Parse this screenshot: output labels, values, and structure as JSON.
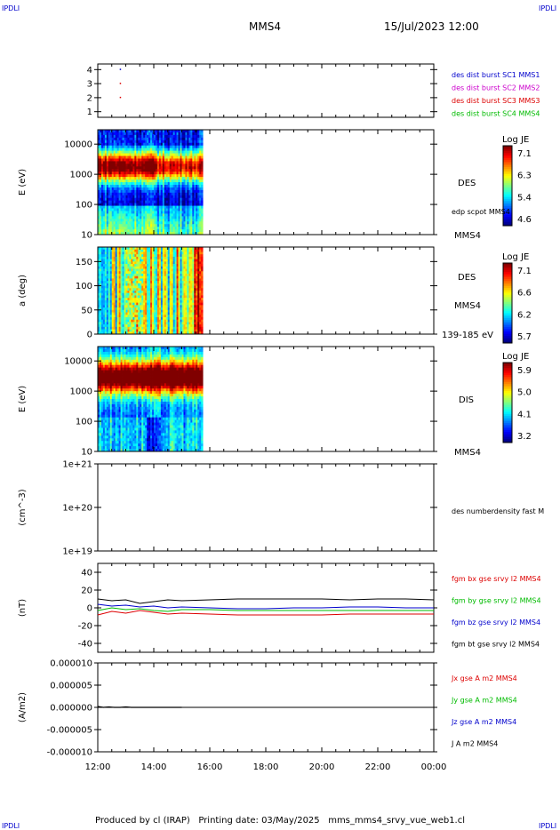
{
  "header": {
    "corner_label": "IPDLI",
    "spacecraft": "MMS4",
    "datetime": "15/Jul/2023 12:00"
  },
  "footer": {
    "produced_by": "Produced by cl (IRAP)",
    "printing_date": "Printing date: 03/May/2025",
    "filename": "mms_mms4_srvy_vue_web1.cl"
  },
  "colors": {
    "mms1": "#0000cc",
    "mms2": "#cc00cc",
    "mms3": "#dd0000",
    "mms4": "#00bb00",
    "bt": "#000000"
  },
  "chart_data": [
    {
      "type": "scatter",
      "ytick_labels": [
        "4",
        "3",
        "2",
        "1"
      ],
      "ylim": [
        0.6,
        4.4
      ],
      "legend": [
        "des dist burst SC1 MMS1",
        "des dist burst SC2 MMS2",
        "des dist burst SC3 MMS3",
        "des dist burst SC4 MMS4"
      ],
      "points": [
        {
          "x": 12.8,
          "y": 4,
          "series": 0
        },
        {
          "x": 12.8,
          "y": 3,
          "series": 2
        },
        {
          "x": 12.8,
          "y": 2,
          "series": 2
        }
      ]
    },
    {
      "type": "heatmap",
      "ylabel": "E (eV)",
      "ytick_labels": [
        "10000",
        "1000",
        "100",
        "10"
      ],
      "scale": "log",
      "ylim": [
        10,
        30000
      ],
      "instrument": "DES",
      "overlay_label": "edp scpot MMS4",
      "spacecraft_label": "MMS4",
      "colorbar": {
        "title": "Log JE",
        "ticks": [
          "7.1",
          "6.3",
          "5.4",
          "4.6"
        ]
      },
      "data_end_hour": 15.75
    },
    {
      "type": "heatmap",
      "ylabel": "a (deg)",
      "ytick_labels": [
        "150",
        "100",
        "50",
        "0"
      ],
      "ylim": [
        0,
        180
      ],
      "instrument": "DES",
      "spacecraft_label": "MMS4",
      "energy_label": "139-185 eV",
      "colorbar": {
        "title": "Log JE",
        "ticks": [
          "7.1",
          "6.6",
          "6.2",
          "5.7"
        ]
      },
      "data_end_hour": 15.75
    },
    {
      "type": "heatmap",
      "ylabel": "E (eV)",
      "ytick_labels": [
        "10000",
        "1000",
        "100",
        "10"
      ],
      "scale": "log",
      "ylim": [
        10,
        30000
      ],
      "instrument": "DIS",
      "spacecraft_label": "MMS4",
      "colorbar": {
        "title": "Log JE",
        "ticks": [
          "5.9",
          "5.0",
          "4.1",
          "3.2"
        ]
      },
      "data_end_hour": 15.75
    },
    {
      "type": "line",
      "ylabel": "(cm^-3)",
      "ytick_labels": [
        "1e+21",
        "1e+20",
        "1e+19"
      ],
      "legend": [
        "des numberdensity fast M"
      ],
      "series": []
    },
    {
      "type": "line",
      "ylabel": "(nT)",
      "ytick_labels": [
        "40",
        "20",
        "0",
        "-20",
        "-40"
      ],
      "ylim": [
        -50,
        50
      ],
      "legend": [
        "fgm bx gse srvy l2 MMS4",
        "fgm by gse srvy l2 MMS4",
        "fgm bz gse srvy l2 MMS4",
        "fgm bt gse srvy l2 MMS4"
      ],
      "x": [
        12.0,
        12.5,
        13.0,
        13.5,
        14.0,
        14.5,
        15.0,
        16.0,
        17.0,
        18.0,
        19.0,
        20.0,
        21.0,
        22.0,
        23.0,
        24.0
      ],
      "series": [
        {
          "name": "fgm bx gse srvy l2 MMS4",
          "values": [
            -8,
            -4,
            -6,
            -3,
            -5,
            -7,
            -6,
            -7,
            -8,
            -8,
            -8,
            -8,
            -7,
            -7,
            -7,
            -7
          ]
        },
        {
          "name": "fgm by gse srvy l2 MMS4",
          "values": [
            -3,
            0,
            -2,
            -1,
            -3,
            -4,
            -2,
            -2,
            -3,
            -3,
            -3,
            -3,
            -3,
            -3,
            -3,
            -3
          ]
        },
        {
          "name": "fgm bz gse srvy l2 MMS4",
          "values": [
            4,
            2,
            3,
            1,
            2,
            0,
            1,
            0,
            -1,
            -1,
            0,
            0,
            1,
            1,
            0,
            0
          ]
        },
        {
          "name": "fgm bt gse srvy l2 MMS4",
          "values": [
            10,
            8,
            9,
            5,
            7,
            9,
            8,
            9,
            10,
            10,
            10,
            10,
            9,
            10,
            10,
            9
          ]
        }
      ]
    },
    {
      "type": "line",
      "ylabel": "(A/m2)",
      "ytick_labels": [
        "0.000010",
        "0.000005",
        "0.000000",
        "-0.000005",
        "-0.000010"
      ],
      "ylim": [
        -1e-05,
        1e-05
      ],
      "legend": [
        "Jx gse A m2 MMS4",
        "Jy gse A m2 MMS4",
        "Jz gse A m2 MMS4",
        "J A m2 MMS4"
      ],
      "x": [
        12.0,
        12.2,
        12.4,
        12.6,
        12.8,
        13.0,
        13.2,
        13.4,
        13.6,
        13.8,
        14.0,
        14.2,
        14.4,
        14.6,
        14.8,
        15.0
      ],
      "series": [
        {
          "name": "J A m2 MMS4",
          "values": [
            2e-07,
            0,
            1e-07,
            0,
            0,
            1e-07,
            0,
            0,
            0,
            0,
            0,
            0,
            0,
            0,
            0,
            0
          ]
        }
      ]
    }
  ],
  "time_axis": {
    "xlim": [
      12,
      24
    ],
    "tick_labels": [
      "12:00",
      "14:00",
      "16:00",
      "18:00",
      "20:00",
      "22:00",
      "00:00"
    ]
  }
}
